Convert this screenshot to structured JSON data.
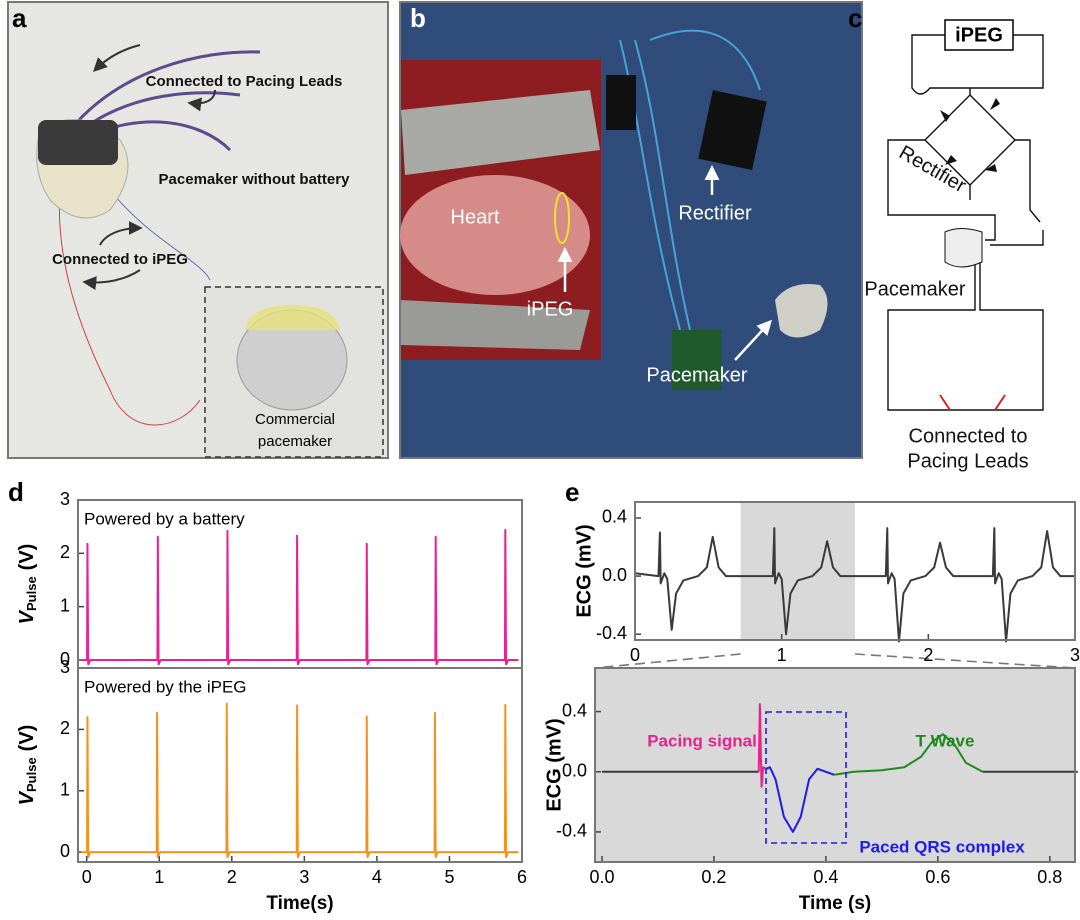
{
  "panel_labels": [
    "a",
    "b",
    "c",
    "d",
    "e"
  ],
  "photo_a": {
    "labels": [
      "Connected to Pacing Leads",
      "Pacemaker without battery",
      "Connected to iPEG"
    ],
    "inset": [
      "Commercial",
      "pacemaker"
    ]
  },
  "photo_b": {
    "labels": [
      "Heart",
      "iPEG",
      "Rectifier",
      "Pacemaker"
    ]
  },
  "diagram_c": {
    "nodes": [
      "iPEG",
      "Rectifier",
      "Pacemaker"
    ],
    "leads": [
      "Connected to",
      "Pacing Leads"
    ]
  },
  "chart_data": [
    {
      "type": "line",
      "annotation": "Powered by a battery",
      "ylabel": [
        "V",
        "Pulse",
        "(V)"
      ],
      "xlim": [
        -0.12,
        6
      ],
      "ylim": [
        -0.15,
        3
      ],
      "yticks": [
        0,
        1,
        2,
        3
      ],
      "series": [
        {
          "color": "#e8238f",
          "x": [
            -0.08,
            0.005,
            0.01,
            0.02,
            0.05,
            0.975,
            0.98,
            0.99,
            1.02,
            1.935,
            1.94,
            1.95,
            1.98,
            2.895,
            2.9,
            2.91,
            2.94,
            3.855,
            3.86,
            3.87,
            3.9,
            4.805,
            4.81,
            4.82,
            4.85,
            5.765,
            5.77,
            5.78,
            5.81,
            5.95
          ],
          "values": [
            0,
            0,
            2.18,
            -0.08,
            0,
            0,
            2.31,
            -0.08,
            0,
            0,
            2.42,
            -0.08,
            0,
            0,
            2.33,
            -0.08,
            0,
            0,
            2.18,
            -0.08,
            0,
            0,
            2.31,
            -0.08,
            0,
            0,
            2.44,
            -0.08,
            0,
            0
          ]
        }
      ]
    },
    {
      "type": "line",
      "annotation": "Powered by the iPEG",
      "ylabel": [
        "V",
        "Pulse",
        "(V)"
      ],
      "xlabel": "Time(s)",
      "xlim": [
        -0.12,
        6
      ],
      "ylim": [
        -0.16,
        3
      ],
      "yticks": [
        0,
        1,
        2,
        3
      ],
      "xticks": [
        0,
        1,
        2,
        3,
        4,
        5,
        6
      ],
      "series": [
        {
          "color": "#f39221",
          "x": [
            -0.08,
            0.005,
            0.01,
            0.02,
            0.05,
            0.965,
            0.97,
            0.98,
            1.01,
            1.925,
            1.93,
            1.94,
            1.97,
            2.895,
            2.9,
            2.91,
            2.94,
            3.855,
            3.86,
            3.87,
            3.9,
            4.795,
            4.8,
            4.81,
            4.84,
            5.765,
            5.77,
            5.78,
            5.81,
            5.95
          ],
          "values": [
            0,
            0,
            2.2,
            -0.08,
            0,
            0,
            2.27,
            -0.08,
            0,
            0,
            2.42,
            -0.08,
            0,
            0,
            2.39,
            -0.08,
            0,
            0,
            2.21,
            -0.08,
            0,
            0,
            2.27,
            -0.08,
            0,
            0,
            2.4,
            -0.08,
            0,
            0
          ]
        }
      ]
    },
    {
      "type": "line",
      "ylabel": "ECG (mV)",
      "xlim": [
        0,
        3
      ],
      "ylim": [
        -0.44,
        0.51
      ],
      "xticks": [
        0,
        1,
        2,
        3
      ],
      "yticks": [
        -0.4,
        {
          "value": 0,
          "label": "0.0"
        },
        0.4
      ],
      "highlight": [
        0.72,
        1.5
      ],
      "highlight_color": "#d9d9d9",
      "series": [
        {
          "color": "#3a3a3a",
          "x": [
            0,
            0.16,
            0.17,
            0.175,
            0.2,
            0.22,
            0.25,
            0.28,
            0.33,
            0.43,
            0.49,
            0.53,
            0.57,
            0.62,
            0.94,
            0.95,
            0.955,
            0.98,
            1.0,
            1.03,
            1.06,
            1.11,
            1.21,
            1.27,
            1.31,
            1.35,
            1.4,
            1.71,
            1.72,
            1.725,
            1.75,
            1.77,
            1.8,
            1.83,
            1.88,
            1.98,
            2.04,
            2.08,
            2.12,
            2.17,
            2.44,
            2.45,
            2.455,
            2.48,
            2.5,
            2.53,
            2.56,
            2.61,
            2.71,
            2.77,
            2.81,
            2.85,
            2.9,
            3.0
          ],
          "values": [
            0.02,
            0,
            0.3,
            -0.05,
            0.02,
            -0.02,
            -0.37,
            -0.12,
            -0.03,
            0,
            0.06,
            0.27,
            0.06,
            0,
            0,
            0.33,
            -0.05,
            0.02,
            -0.02,
            -0.4,
            -0.12,
            -0.03,
            0,
            0.06,
            0.24,
            0.06,
            0,
            0,
            0.33,
            -0.05,
            0.02,
            -0.02,
            -0.45,
            -0.12,
            -0.03,
            0,
            0.06,
            0.23,
            0.06,
            0,
            0,
            0.33,
            -0.05,
            0.02,
            -0.02,
            -0.45,
            -0.12,
            -0.03,
            0,
            0.06,
            0.31,
            0.06,
            0,
            0
          ]
        }
      ]
    },
    {
      "type": "line",
      "ylabel": "ECG (mV)",
      "xlabel": "Time (s)",
      "background": "#d9d9d9",
      "xlim": [
        -0.0125,
        0.845
      ],
      "ylim": [
        -0.6,
        0.69
      ],
      "xticks": [
        {
          "value": 0,
          "label": "0.0"
        },
        0.2,
        0.4,
        0.6,
        0.8
      ],
      "yticks": [
        -0.4,
        {
          "value": 0,
          "label": "0.0"
        },
        0.4
      ],
      "series": [
        {
          "color": "#3a3a3a",
          "x": [
            0,
            0.1,
            0.2,
            0.27,
            0.28
          ],
          "values": [
            0,
            0,
            0,
            0,
            0
          ]
        },
        {
          "name": "Pacing signal",
          "color": "#e8238f",
          "x": [
            0.28,
            0.282,
            0.285,
            0.288,
            0.293
          ],
          "values": [
            0,
            0.45,
            -0.1,
            0.03,
            0.02
          ]
        },
        {
          "name": "Paced QRS complex",
          "color": "#1c1cf0",
          "x": [
            0.293,
            0.3,
            0.31,
            0.325,
            0.341,
            0.355,
            0.37,
            0.385,
            0.4,
            0.415
          ],
          "values": [
            0.02,
            0.03,
            -0.05,
            -0.3,
            -0.4,
            -0.3,
            -0.05,
            0.02,
            0,
            -0.02
          ]
        },
        {
          "name": "T Wave",
          "color": "#1e8a1e",
          "x": [
            0.415,
            0.45,
            0.5,
            0.54,
            0.57,
            0.59,
            0.609,
            0.63,
            0.65,
            0.68
          ],
          "values": [
            -0.02,
            0,
            0.01,
            0.03,
            0.1,
            0.2,
            0.25,
            0.18,
            0.06,
            0
          ]
        },
        {
          "color": "#3a3a3a",
          "x": [
            0.68,
            0.75,
            0.85
          ],
          "values": [
            0,
            0,
            0
          ]
        }
      ]
    }
  ]
}
